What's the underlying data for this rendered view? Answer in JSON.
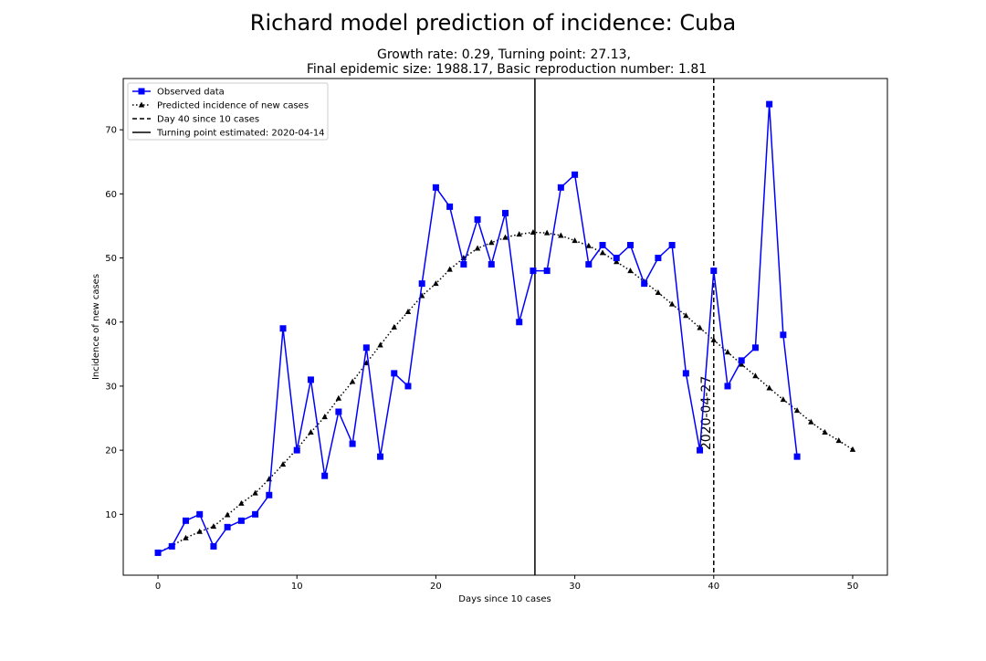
{
  "figure": {
    "suptitle": "Richard model prediction of incidence: Cuba",
    "subtitle_line1": "Growth rate: 0.29, Turning point: 27.13,",
    "subtitle_line2": "Final epidemic size: 1988.17, Basic reproduction number: 1.81"
  },
  "chart_data": {
    "type": "line",
    "title": "Richard model prediction of incidence: Cuba",
    "subtitle": "Growth rate: 0.29, Turning point: 27.13, Final epidemic size: 1988.17, Basic reproduction number: 1.81",
    "xlabel": "Days since 10 cases",
    "ylabel": "Incidence of new cases",
    "xlim": [
      -2.5,
      52.5
    ],
    "ylim": [
      0.5,
      78
    ],
    "xticks": [
      0,
      10,
      20,
      30,
      40,
      50
    ],
    "yticks": [
      10,
      20,
      30,
      40,
      50,
      60,
      70
    ],
    "grid": false,
    "legend_position": "upper-left",
    "series": [
      {
        "name": "Observed data",
        "style": "solid line with square markers",
        "color": "#0000ff",
        "x": [
          0,
          1,
          2,
          3,
          4,
          5,
          6,
          7,
          8,
          9,
          10,
          11,
          12,
          13,
          14,
          15,
          16,
          17,
          18,
          19,
          20,
          21,
          22,
          23,
          24,
          25,
          26,
          27,
          28,
          29,
          30,
          31,
          32,
          33,
          34,
          35,
          36,
          37,
          38,
          39,
          40,
          41,
          42,
          43,
          44,
          45,
          46
        ],
        "values": [
          4,
          5,
          9,
          10,
          5,
          8,
          9,
          10,
          13,
          39,
          20,
          31,
          16,
          26,
          21,
          36,
          19,
          32,
          30,
          46,
          61,
          58,
          49,
          56,
          49,
          57,
          40,
          48,
          48,
          61,
          63,
          49,
          52,
          50,
          52,
          46,
          50,
          52,
          32,
          20,
          48,
          30,
          34,
          36,
          74,
          38,
          19
        ]
      },
      {
        "name": "Predicted incidence of new cases",
        "style": "dotted line with triangle markers",
        "color": "#000000",
        "x": [
          0,
          1,
          2,
          3,
          4,
          5,
          6,
          7,
          8,
          9,
          10,
          11,
          12,
          13,
          14,
          15,
          16,
          17,
          18,
          19,
          20,
          21,
          22,
          23,
          24,
          25,
          26,
          27,
          28,
          29,
          30,
          31,
          32,
          33,
          34,
          35,
          36,
          37,
          38,
          39,
          40,
          41,
          42,
          43,
          44,
          45,
          46,
          47,
          48,
          49,
          50
        ],
        "values": [
          4.0,
          5.1,
          6.3,
          7.3,
          8.1,
          9.9,
          11.7,
          13.3,
          15.5,
          17.8,
          20.2,
          22.8,
          25.2,
          28.1,
          30.7,
          33.6,
          36.4,
          39.2,
          41.6,
          44.1,
          46.0,
          48.2,
          50.0,
          51.5,
          52.4,
          53.2,
          53.7,
          54.0,
          53.9,
          53.5,
          52.7,
          51.9,
          50.8,
          49.4,
          48.0,
          46.3,
          44.6,
          42.8,
          41.0,
          39.1,
          37.2,
          35.3,
          33.4,
          31.6,
          29.7,
          27.9,
          26.2,
          24.4,
          22.8,
          21.5,
          20.1
        ]
      }
    ],
    "vlines": [
      {
        "name": "Day 40 since 10 cases",
        "x": 40,
        "style": "dashed",
        "color": "#000000",
        "annotation": "2020-04-27"
      },
      {
        "name": "Turning point estimated: 2020-04-14",
        "x": 27.13,
        "style": "solid",
        "color": "#000000"
      }
    ]
  }
}
